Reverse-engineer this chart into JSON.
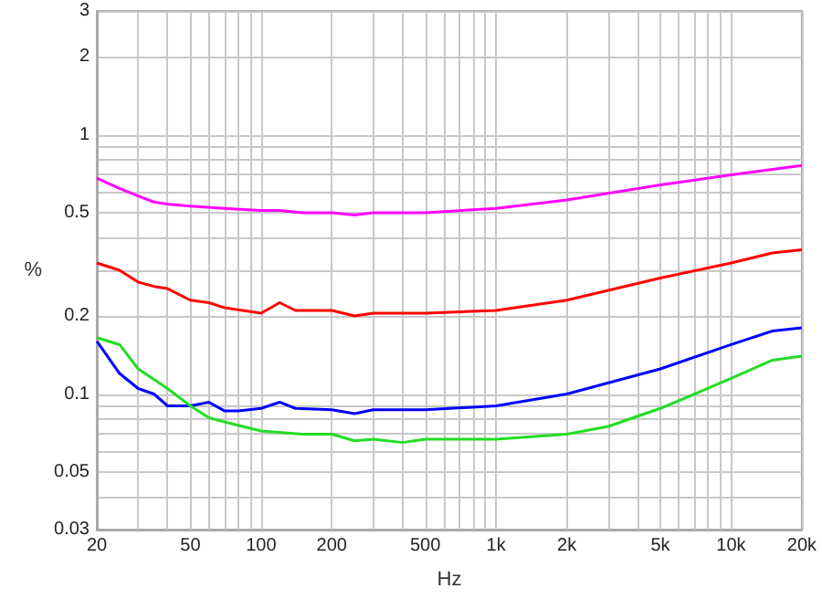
{
  "chart_data": {
    "type": "line",
    "xlabel": "Hz",
    "ylabel": "%",
    "log": "xy",
    "grid": true,
    "marker": "none",
    "line_style": "solid",
    "xlim": [
      20,
      20000
    ],
    "ylim": [
      0.03,
      3
    ],
    "xticks": [
      20,
      {
        "value": 30,
        "label": null
      },
      {
        "value": 40,
        "label": null
      },
      50,
      {
        "value": 60,
        "label": null
      },
      {
        "value": 70,
        "label": null
      },
      {
        "value": 80,
        "label": null
      },
      {
        "value": 90,
        "label": null
      },
      100,
      200,
      {
        "value": 300,
        "label": null
      },
      {
        "value": 400,
        "label": null
      },
      500,
      {
        "value": 600,
        "label": null
      },
      {
        "value": 700,
        "label": null
      },
      {
        "value": 800,
        "label": null
      },
      {
        "value": 900,
        "label": null
      },
      {
        "value": 1000,
        "label": "1k"
      },
      {
        "value": 2000,
        "label": "2k"
      },
      {
        "value": 3000,
        "label": null
      },
      {
        "value": 4000,
        "label": null
      },
      {
        "value": 5000,
        "label": "5k"
      },
      {
        "value": 6000,
        "label": null
      },
      {
        "value": 7000,
        "label": null
      },
      {
        "value": 8000,
        "label": null
      },
      {
        "value": 9000,
        "label": null
      },
      {
        "value": 10000,
        "label": "10k"
      },
      {
        "value": 20000,
        "label": "20k"
      }
    ],
    "yticks": [
      0.03,
      {
        "value": 0.04,
        "label": null
      },
      0.05,
      {
        "value": 0.06,
        "label": null
      },
      {
        "value": 0.07,
        "label": null
      },
      {
        "value": 0.08,
        "label": null
      },
      {
        "value": 0.09,
        "label": null
      },
      0.1,
      0.2,
      {
        "value": 0.3,
        "label": null
      },
      {
        "value": 0.4,
        "label": null
      },
      0.5,
      {
        "value": 0.6,
        "label": null
      },
      {
        "value": 0.7,
        "label": null
      },
      {
        "value": 0.8,
        "label": null
      },
      {
        "value": 0.9,
        "label": null
      },
      1,
      2,
      3
    ],
    "series": [
      {
        "color": "#ff00ff",
        "x": [
          20,
          25,
          30,
          35,
          40,
          50,
          70,
          100,
          120,
          150,
          200,
          250,
          300,
          500,
          1000,
          2000,
          5000,
          10000,
          20000
        ],
        "values": [
          0.68,
          0.62,
          0.58,
          0.55,
          0.54,
          0.53,
          0.52,
          0.51,
          0.51,
          0.5,
          0.5,
          0.49,
          0.5,
          0.5,
          0.52,
          0.56,
          0.64,
          0.7,
          0.76
        ]
      },
      {
        "color": "#ff0000",
        "x": [
          20,
          25,
          30,
          35,
          40,
          50,
          60,
          70,
          100,
          120,
          140,
          200,
          250,
          300,
          500,
          1000,
          2000,
          5000,
          10000,
          15000,
          20000
        ],
        "values": [
          0.32,
          0.3,
          0.27,
          0.26,
          0.255,
          0.23,
          0.225,
          0.215,
          0.205,
          0.225,
          0.21,
          0.21,
          0.2,
          0.205,
          0.205,
          0.21,
          0.23,
          0.28,
          0.32,
          0.35,
          0.36
        ]
      },
      {
        "color": "#0000ff",
        "x": [
          20,
          25,
          30,
          35,
          40,
          50,
          60,
          70,
          80,
          100,
          120,
          140,
          200,
          250,
          300,
          500,
          1000,
          2000,
          5000,
          10000,
          15000,
          20000
        ],
        "values": [
          0.16,
          0.12,
          0.105,
          0.1,
          0.09,
          0.09,
          0.093,
          0.086,
          0.086,
          0.088,
          0.093,
          0.088,
          0.087,
          0.084,
          0.087,
          0.087,
          0.09,
          0.1,
          0.125,
          0.155,
          0.175,
          0.18
        ]
      },
      {
        "color": "#22dd22",
        "x": [
          20,
          25,
          30,
          40,
          50,
          60,
          70,
          100,
          150,
          200,
          250,
          300,
          400,
          500,
          1000,
          2000,
          3000,
          5000,
          7000,
          10000,
          15000,
          20000
        ],
        "values": [
          0.165,
          0.155,
          0.125,
          0.105,
          0.09,
          0.081,
          0.078,
          0.072,
          0.07,
          0.07,
          0.066,
          0.067,
          0.065,
          0.067,
          0.067,
          0.07,
          0.075,
          0.088,
          0.1,
          0.115,
          0.135,
          0.14
        ]
      }
    ]
  }
}
